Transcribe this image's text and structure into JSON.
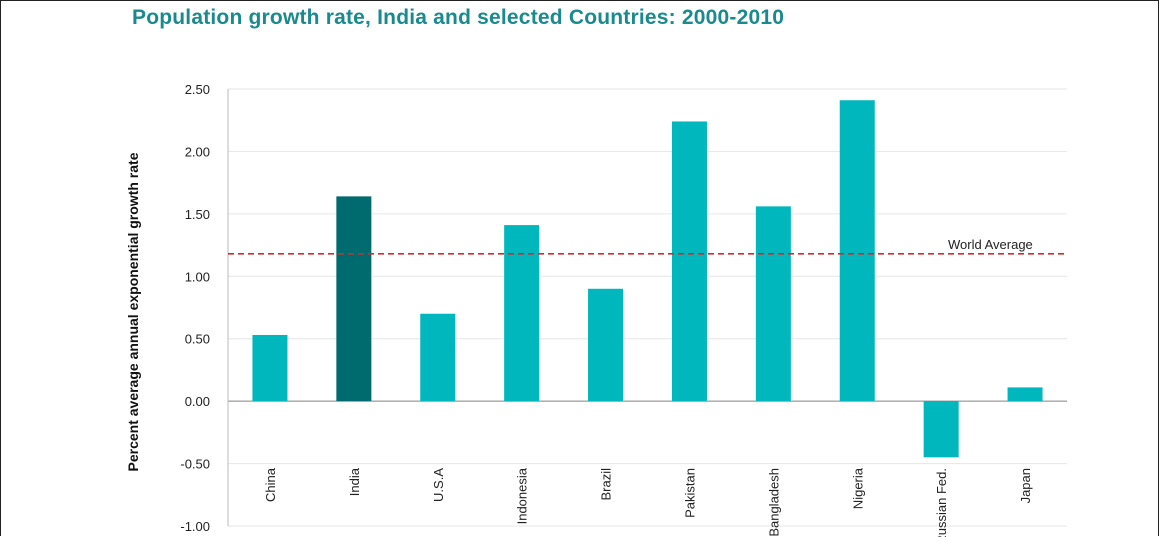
{
  "chart_data": {
    "type": "bar",
    "title": "Population growth rate, India and selected Countries: 2000-2010",
    "xlabel": "",
    "ylabel": "Percent average annual exponential growth rate",
    "ylim": [
      -1.0,
      2.5
    ],
    "yticks": [
      "2.50",
      "2.00",
      "1.50",
      "1.00",
      "0.50",
      "0.00",
      "-0.50",
      "-1.00"
    ],
    "ytick_values": [
      2.5,
      2.0,
      1.5,
      1.0,
      0.5,
      0.0,
      -0.5,
      -1.0
    ],
    "grid": true,
    "categories": [
      "China",
      "India",
      "U.S.A",
      "Indonesia",
      "Brazil",
      "Pakistan",
      "Bangladesh",
      "Nigeria",
      "Russian Fed.",
      "Japan"
    ],
    "values": [
      0.53,
      1.64,
      0.7,
      1.41,
      0.9,
      2.24,
      1.56,
      2.41,
      -0.45,
      0.11
    ],
    "highlight": "India",
    "colors": {
      "bar": "#00b7bd",
      "highlight": "#006b6e",
      "reference": "#d42a2a",
      "title": "#1a8a8c"
    },
    "reference_line": {
      "label": "World Average",
      "value": 1.18
    }
  }
}
